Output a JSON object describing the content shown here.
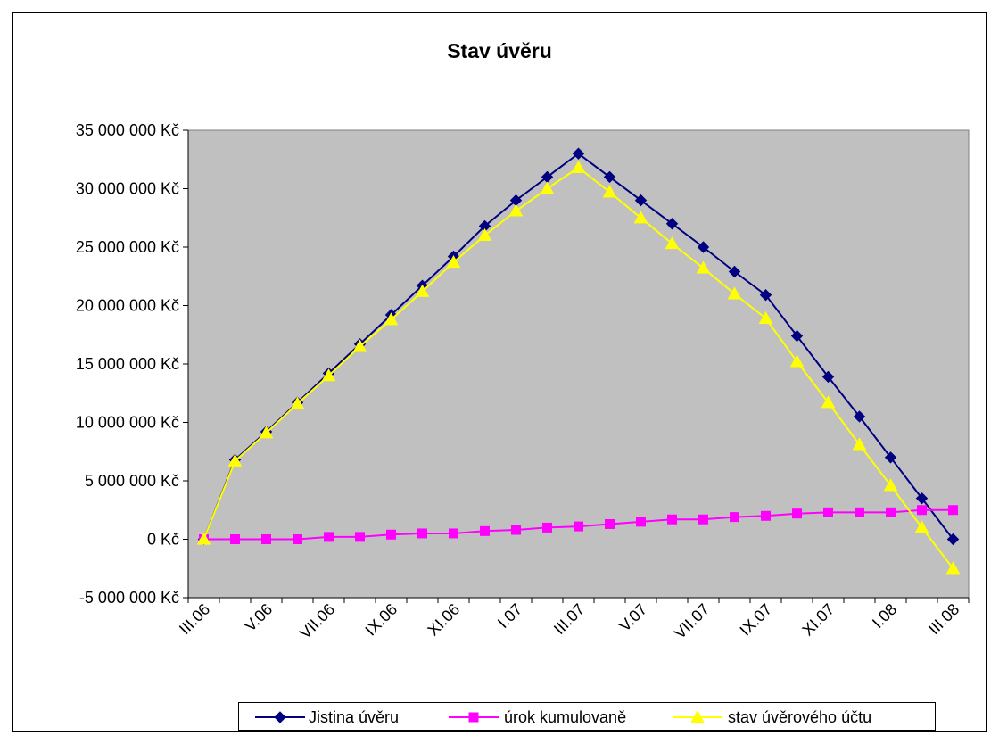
{
  "chart_data": {
    "type": "line",
    "title": "Stav úvěru",
    "xlabel": "",
    "ylabel": "",
    "ylim": [
      -5000000,
      35000000
    ],
    "y_ticks": [
      -5000000,
      0,
      5000000,
      10000000,
      15000000,
      20000000,
      25000000,
      30000000,
      35000000
    ],
    "y_tick_labels": [
      "-5 000 000 Kč",
      "0 Kč",
      "5 000 000 Kč",
      "10 000 000 Kč",
      "15 000 000 Kč",
      "20 000 000 Kč",
      "25 000 000 Kč",
      "30 000 000 Kč",
      "35 000 000 Kč"
    ],
    "x_tick_labels": [
      "III.06",
      "V.06",
      "VII.06",
      "IX.06",
      "XI.06",
      "I.07",
      "III.07",
      "V.07",
      "VII.07",
      "IX.07",
      "XI.07",
      "I.08",
      "III.08"
    ],
    "x": [
      "III.06",
      "IV.06",
      "V.06",
      "VI.06",
      "VII.06",
      "VIII.06",
      "IX.06",
      "X.06",
      "XI.06",
      "XII.06",
      "I.07",
      "II.07",
      "III.07",
      "IV.07",
      "V.07",
      "VI.07",
      "VII.07",
      "VIII.07",
      "IX.07",
      "X.07",
      "XI.07",
      "XII.07",
      "I.08",
      "II.08",
      "III.08"
    ],
    "grid": false,
    "plot_background": "#C0C0C0",
    "legend_position": "bottom",
    "series": [
      {
        "name": "Jistina úvěru",
        "color": "#000080",
        "marker": "diamond",
        "values": [
          0,
          6800000,
          9200000,
          11700000,
          14200000,
          16700000,
          19200000,
          21700000,
          24200000,
          26800000,
          29000000,
          31000000,
          33000000,
          31000000,
          29000000,
          27000000,
          25000000,
          22900000,
          20900000,
          17400000,
          13900000,
          10500000,
          7000000,
          3500000,
          0
        ]
      },
      {
        "name": "úrok kumulovaně",
        "color": "#FF00FF",
        "marker": "square",
        "values": [
          0,
          0,
          0,
          0,
          200000,
          200000,
          400000,
          500000,
          500000,
          700000,
          800000,
          1000000,
          1100000,
          1300000,
          1500000,
          1700000,
          1700000,
          1900000,
          2000000,
          2200000,
          2300000,
          2300000,
          2300000,
          2500000,
          2500000
        ]
      },
      {
        "name": "stav úvěrového účtu",
        "color": "#FFFF00",
        "marker": "triangle",
        "values": [
          0,
          6700000,
          9100000,
          11600000,
          14000000,
          16500000,
          18800000,
          21200000,
          23700000,
          26000000,
          28100000,
          30000000,
          31800000,
          29700000,
          27500000,
          25300000,
          23200000,
          21000000,
          18900000,
          15200000,
          11700000,
          8100000,
          4600000,
          1000000,
          -2500000
        ]
      }
    ]
  }
}
